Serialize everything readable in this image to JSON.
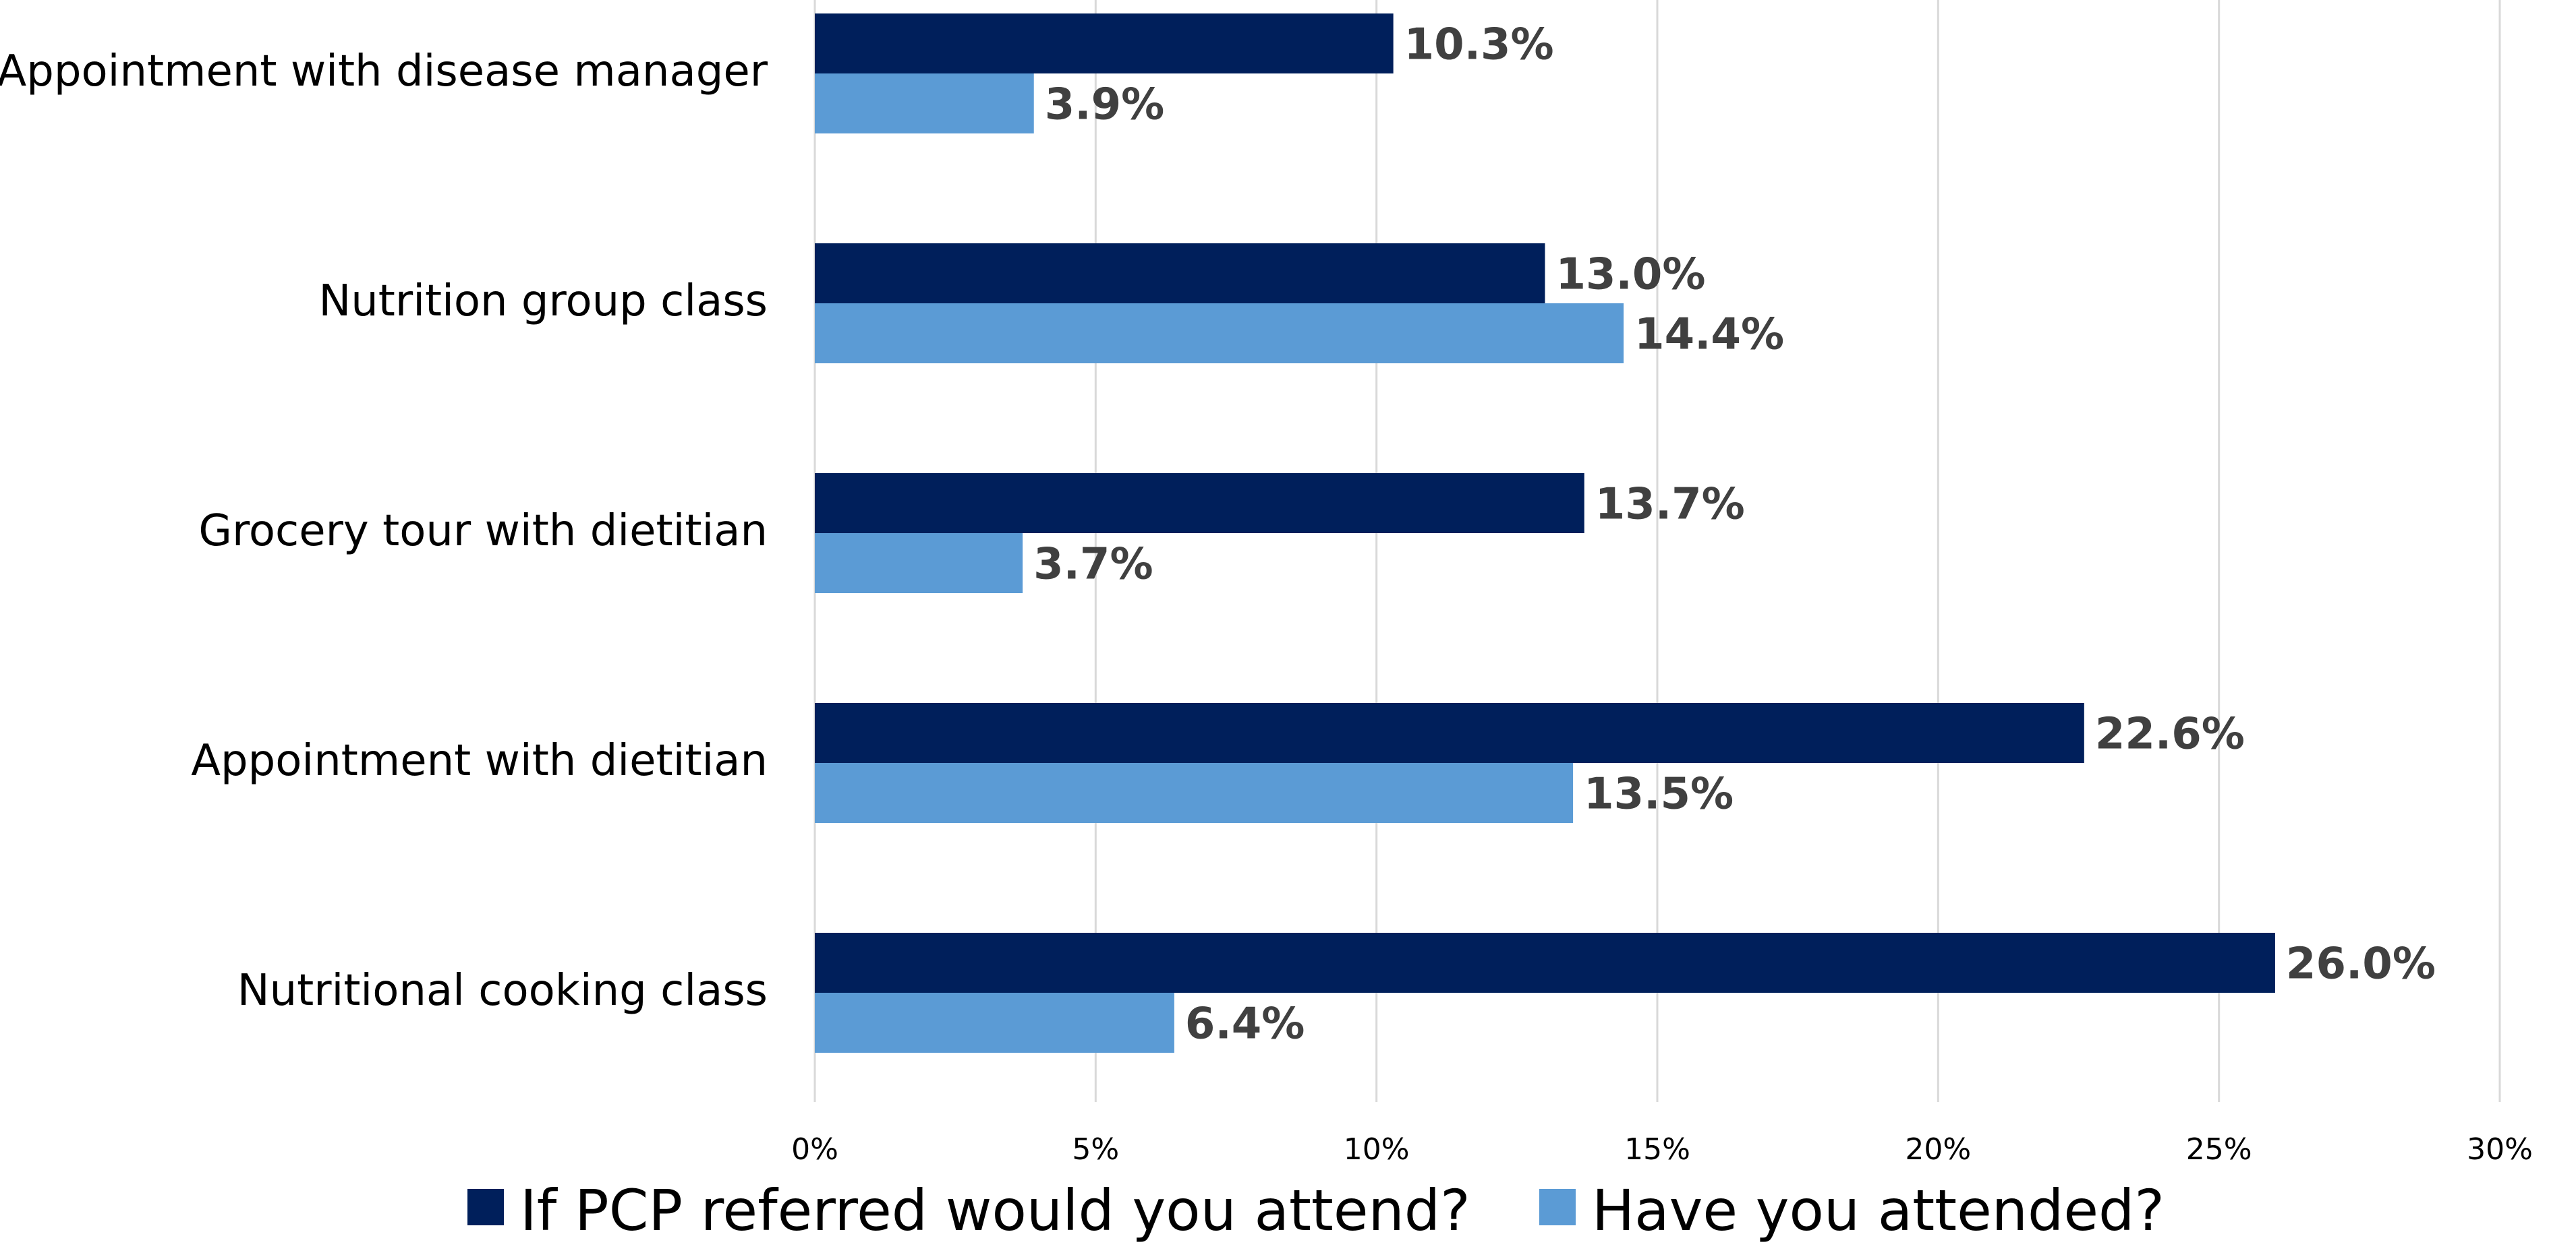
{
  "chart_data": {
    "type": "bar",
    "orientation": "horizontal",
    "categories": [
      "Appointment with disease manager",
      "Nutrition group class",
      "Grocery tour with dietitian",
      "Appointment with dietitian",
      "Nutritional cooking class"
    ],
    "series": [
      {
        "name": "If PCP referred would you attend?",
        "color": "#001F5B",
        "values": [
          10.3,
          13.0,
          13.7,
          22.6,
          26.0
        ],
        "labels": [
          "10.3%",
          "13.0%",
          "13.7%",
          "22.6%",
          "26.0%"
        ]
      },
      {
        "name": "Have you attended?",
        "color": "#5B9BD5",
        "values": [
          3.9,
          14.4,
          3.7,
          13.5,
          6.4
        ],
        "labels": [
          "3.9%",
          "14.4%",
          "3.7%",
          "13.5%",
          "6.4%"
        ]
      }
    ],
    "x_ticks": [
      "0%",
      "5%",
      "10%",
      "15%",
      "20%",
      "25%",
      "30%"
    ],
    "xlim": [
      0,
      30
    ],
    "grid": true,
    "legend_position": "bottom"
  }
}
